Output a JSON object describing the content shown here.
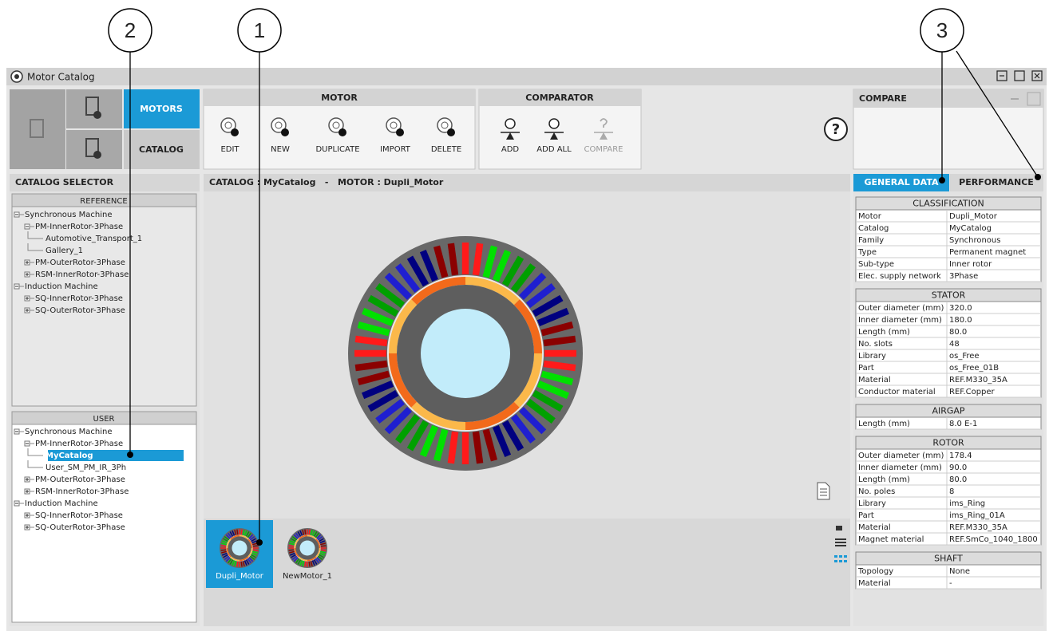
{
  "callouts": [
    "1",
    "2",
    "3"
  ],
  "window_title": "Motor Catalog",
  "nav": {
    "motors": "MOTORS",
    "catalog": "CATALOG"
  },
  "toolbar": {
    "motor": {
      "title": "MOTOR",
      "buttons": [
        "EDIT",
        "NEW",
        "DUPLICATE",
        "IMPORT",
        "DELETE"
      ]
    },
    "comparator": {
      "title": "COMPARATOR",
      "buttons": [
        "ADD",
        "ADD ALL",
        "COMPARE"
      ]
    }
  },
  "help": "?",
  "compare_panel": {
    "title": "COMPARE"
  },
  "catalog_selector": {
    "title": "CATALOG SELECTOR",
    "reference": {
      "title": "REFERENCE",
      "tree": [
        {
          "label": "Synchronous Machine",
          "children": [
            {
              "label": "PM-InnerRotor-3Phase",
              "children": [
                {
                  "label": "Automotive_Transport_1"
                },
                {
                  "label": "Gallery_1"
                }
              ]
            },
            {
              "label": "PM-OuterRotor-3Phase"
            },
            {
              "label": "RSM-InnerRotor-3Phase"
            }
          ]
        },
        {
          "label": "Induction Machine",
          "children": [
            {
              "label": "SQ-InnerRotor-3Phase"
            },
            {
              "label": "SQ-OuterRotor-3Phase"
            }
          ]
        }
      ]
    },
    "user": {
      "title": "USER",
      "tree": [
        {
          "label": "Synchronous Machine",
          "children": [
            {
              "label": "PM-InnerRotor-3Phase",
              "children": [
                {
                  "label": "MyCatalog",
                  "selected": true
                },
                {
                  "label": "User_SM_PM_IR_3Ph"
                }
              ]
            },
            {
              "label": "PM-OuterRotor-3Phase"
            },
            {
              "label": "RSM-InnerRotor-3Phase"
            }
          ]
        },
        {
          "label": "Induction Machine",
          "children": [
            {
              "label": "SQ-InnerRotor-3Phase"
            },
            {
              "label": "SQ-OuterRotor-3Phase"
            }
          ]
        }
      ]
    }
  },
  "viewer": {
    "header": "CATALOG : MyCatalog   -   MOTOR : Dupli_Motor",
    "thumbnails": [
      {
        "label": "Dupli_Motor",
        "selected": true
      },
      {
        "label": "NewMotor_1"
      }
    ]
  },
  "details": {
    "tabs": [
      "GENERAL DATA",
      "PERFORMANCE"
    ],
    "sections": [
      {
        "title": "CLASSIFICATION",
        "rows": [
          [
            "Motor",
            "Dupli_Motor"
          ],
          [
            "Catalog",
            "MyCatalog"
          ],
          [
            "Family",
            "Synchronous"
          ],
          [
            "Type",
            "Permanent magnet"
          ],
          [
            "Sub-type",
            "Inner rotor"
          ],
          [
            "Elec. supply network",
            "3Phase"
          ]
        ]
      },
      {
        "title": "STATOR",
        "rows": [
          [
            "Outer diameter (mm)",
            "320.0"
          ],
          [
            "Inner diameter (mm)",
            "180.0"
          ],
          [
            "Length (mm)",
            "80.0"
          ],
          [
            "No. slots",
            "48"
          ],
          [
            "Library",
            "os_Free"
          ],
          [
            "Part",
            "os_Free_01B"
          ],
          [
            "Material",
            "REF.M330_35A"
          ],
          [
            "Conductor material",
            "REF.Copper"
          ]
        ]
      },
      {
        "title": "AIRGAP",
        "rows": [
          [
            "Length (mm)",
            "8.0 E-1"
          ]
        ]
      },
      {
        "title": "ROTOR",
        "rows": [
          [
            "Outer diameter (mm)",
            "178.4"
          ],
          [
            "Inner diameter (mm)",
            "90.0"
          ],
          [
            "Length (mm)",
            "80.0"
          ],
          [
            "No. poles",
            "8"
          ],
          [
            "Library",
            "ims_Ring"
          ],
          [
            "Part",
            "ims_Ring_01A"
          ],
          [
            "Material",
            "REF.M330_35A"
          ],
          [
            "Magnet material",
            "REF.SmCo_1040_1800"
          ]
        ]
      },
      {
        "title": "SHAFT",
        "rows": [
          [
            "Topology",
            "None"
          ],
          [
            "Material",
            "-"
          ]
        ]
      }
    ]
  }
}
